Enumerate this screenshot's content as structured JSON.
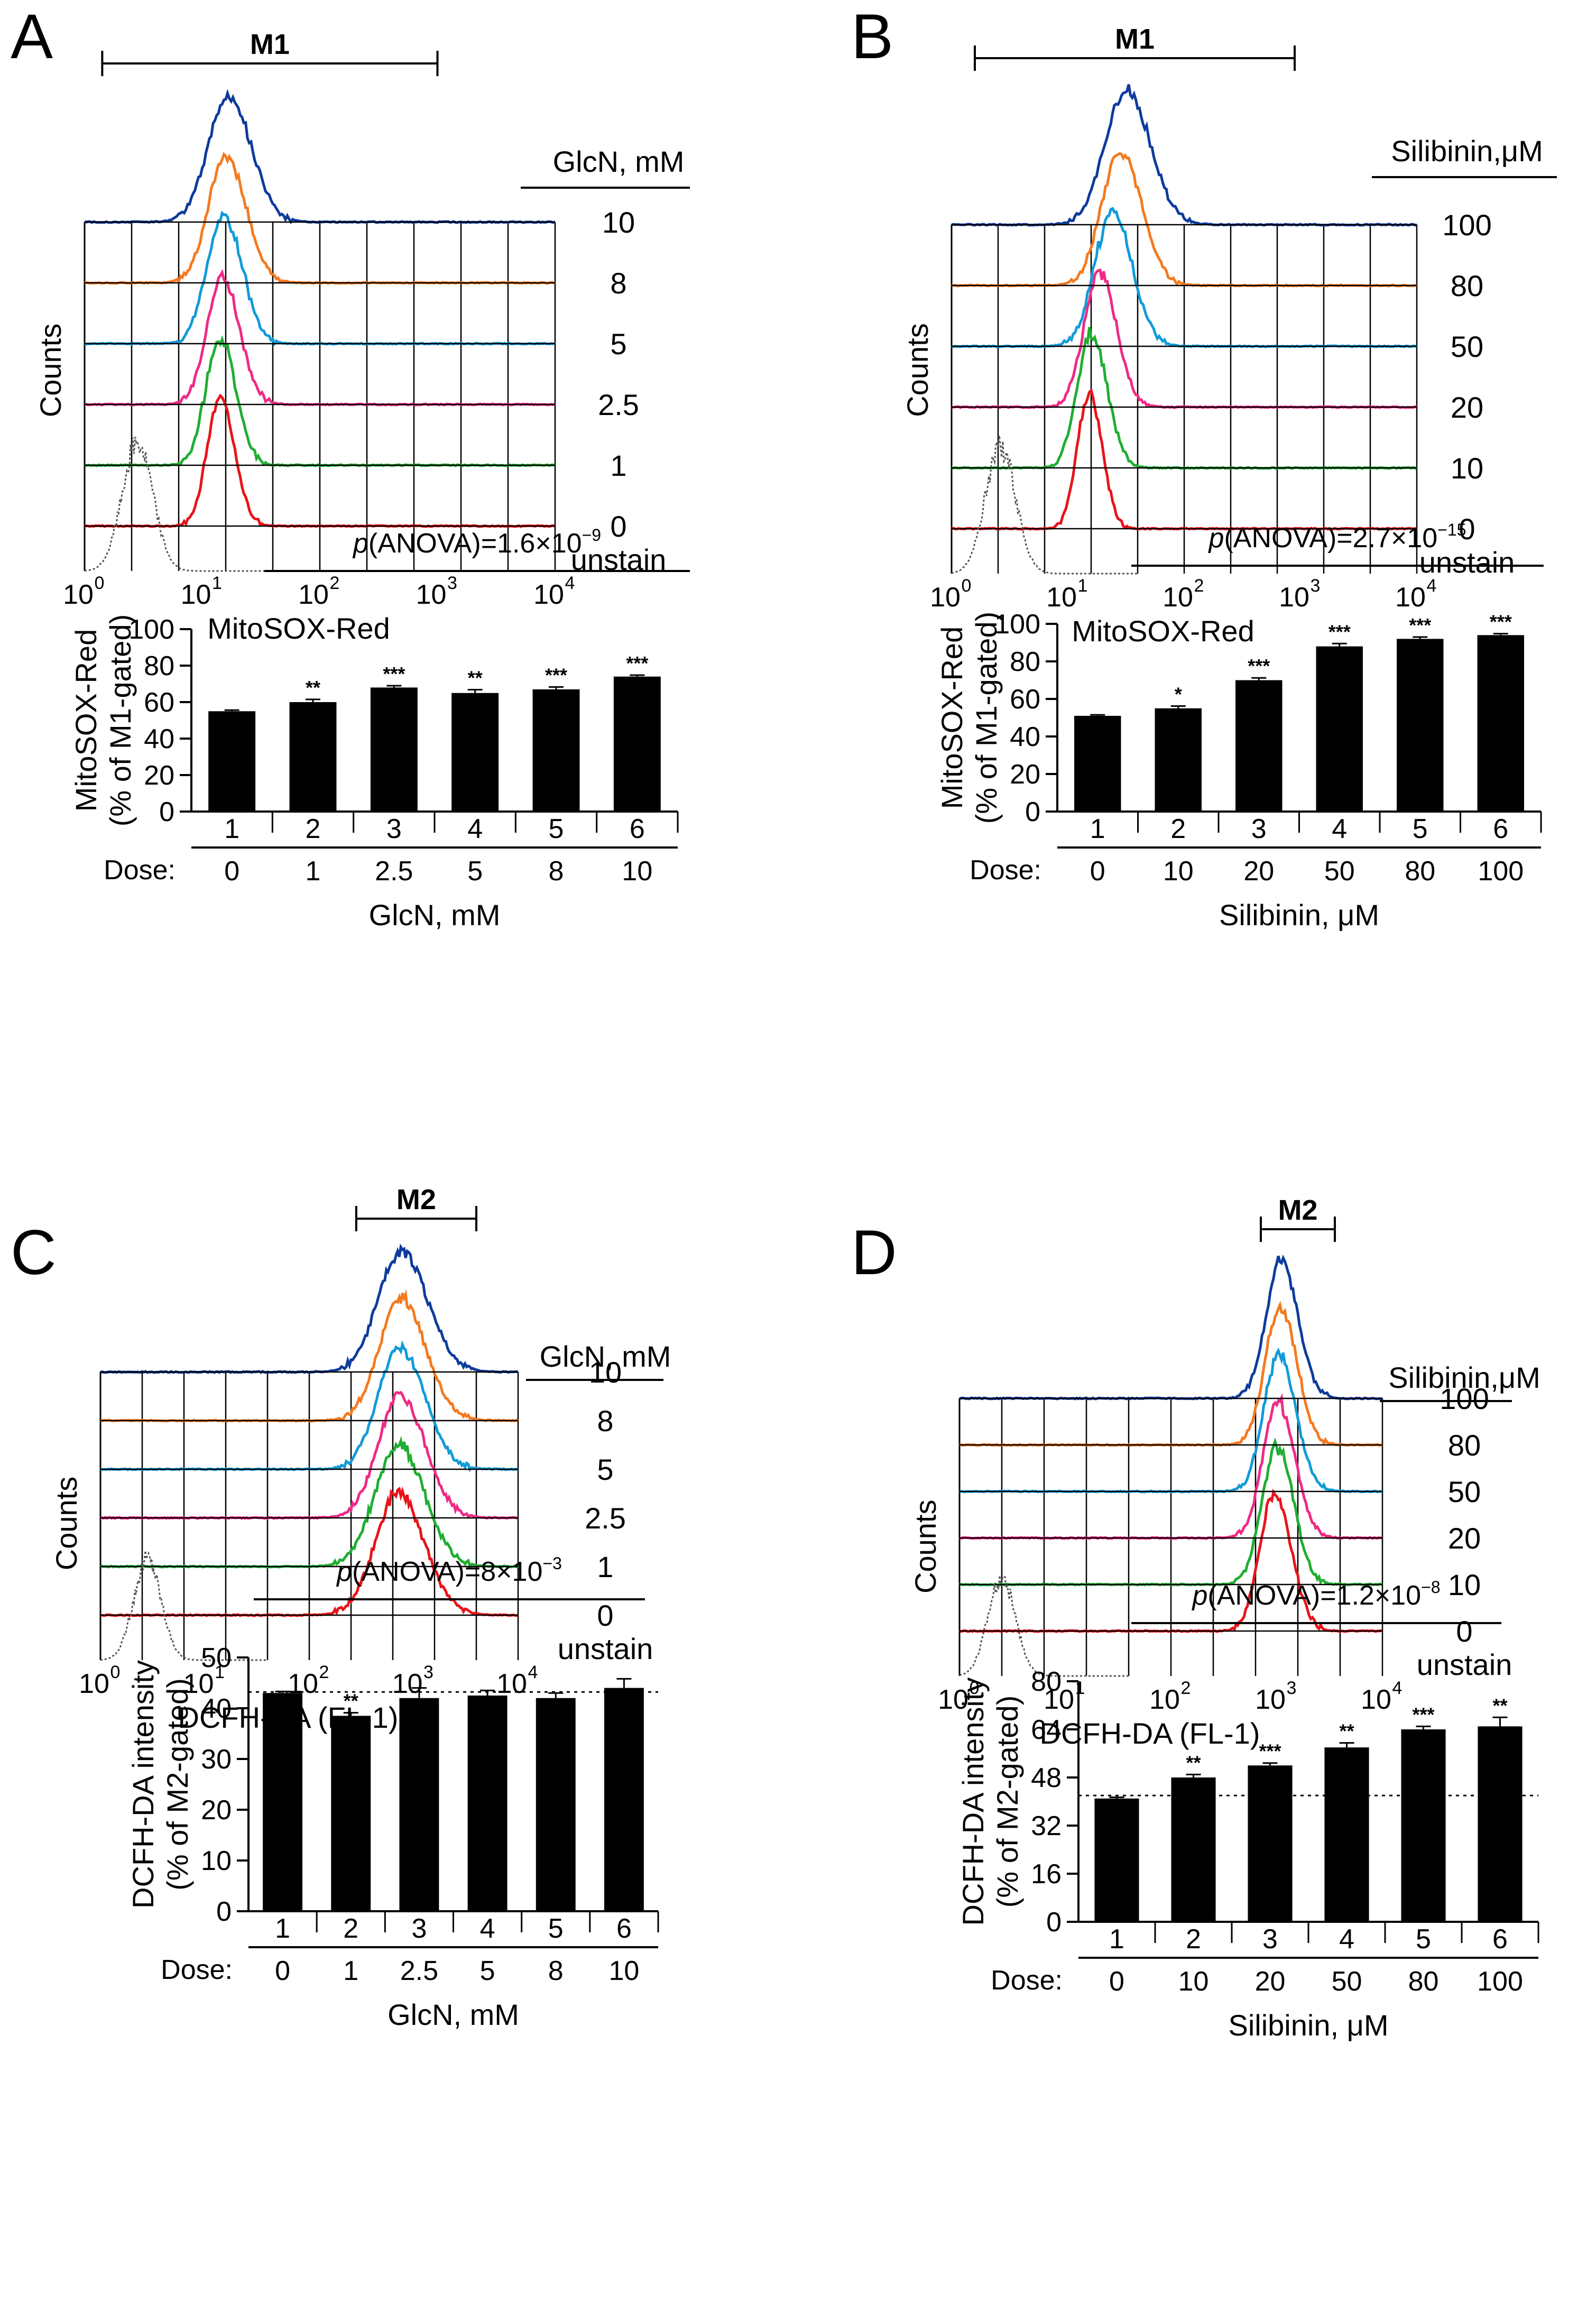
{
  "figure": {
    "panels": [
      {
        "id": "A",
        "label": "A",
        "histogram": {
          "gate_label": "M1",
          "gate_range_log": [
            0.15,
            3.0
          ],
          "xlabel": "MitoSOX-Red",
          "ylabel": "Counts",
          "legend_title": "GlcN, mM",
          "x_ticks": [
            "10",
            "10",
            "10",
            "10",
            "10"
          ],
          "x_tick_exps": [
            "0",
            "1",
            "2",
            "3",
            "4"
          ],
          "unstain_label": "unstain",
          "unstain_peak_log": 0.45,
          "traces": [
            {
              "dose": "0",
              "color": "#e8141a",
              "peak_log": 1.15,
              "width": 0.11
            },
            {
              "dose": "1",
              "color": "#1fae31",
              "peak_log": 1.15,
              "width": 0.12
            },
            {
              "dose": "2.5",
              "color": "#ef2a86",
              "peak_log": 1.17,
              "width": 0.13
            },
            {
              "dose": "5",
              "color": "#129bd8",
              "peak_log": 1.18,
              "width": 0.14
            },
            {
              "dose": "8",
              "color": "#f47a20",
              "peak_log": 1.2,
              "width": 0.15
            },
            {
              "dose": "10",
              "color": "#0e3b9c",
              "peak_log": 1.22,
              "width": 0.17
            }
          ]
        },
        "bar": {
          "anova_prefix": "p",
          "anova_text": "(ANOVA)=1.6×10",
          "anova_exp": "−9",
          "ylabel_line1": "MitoSOX-Red",
          "ylabel_line2": "(% of M1-gated)",
          "ylim": [
            0,
            100
          ],
          "yticks": [
            "0",
            "20",
            "40",
            "60",
            "80",
            "100"
          ],
          "categories": [
            "1",
            "2",
            "3",
            "4",
            "5",
            "6"
          ],
          "dose_label": "Dose:",
          "doses": [
            "0",
            "1",
            "2.5",
            "5",
            "8",
            "10"
          ],
          "xlabel": "GlcN, mM",
          "values": [
            55,
            60,
            68,
            65,
            67,
            74
          ],
          "errors": [
            0.6,
            1.5,
            1.0,
            1.8,
            1.3,
            0.8
          ],
          "stars": [
            "",
            "**",
            "***",
            "**",
            "***",
            "***"
          ],
          "baseline": null
        }
      },
      {
        "id": "B",
        "label": "B",
        "histogram": {
          "gate_label": "M1",
          "gate_range_log": [
            0.2,
            2.95
          ],
          "xlabel": "MitoSOX-Red",
          "ylabel": "Counts",
          "legend_title": "Silibinin,μM",
          "x_ticks": [
            "10",
            "10",
            "10",
            "10",
            "10"
          ],
          "x_tick_exps": [
            "0",
            "1",
            "2",
            "3",
            "4"
          ],
          "unstain_label": "unstain",
          "unstain_peak_log": 0.42,
          "traces": [
            {
              "dose": "0",
              "color": "#e8141a",
              "peak_log": 1.18,
              "width": 0.1
            },
            {
              "dose": "10",
              "color": "#1fae31",
              "peak_log": 1.2,
              "width": 0.12
            },
            {
              "dose": "20",
              "color": "#ef2a86",
              "peak_log": 1.27,
              "width": 0.13
            },
            {
              "dose": "50",
              "color": "#129bd8",
              "peak_log": 1.38,
              "width": 0.15
            },
            {
              "dose": "80",
              "color": "#f47a20",
              "peak_log": 1.45,
              "width": 0.16
            },
            {
              "dose": "100",
              "color": "#0e3b9c",
              "peak_log": 1.5,
              "width": 0.18
            }
          ]
        },
        "bar": {
          "anova_prefix": "p",
          "anova_text": "(ANOVA)=2.7×10",
          "anova_exp": "−15",
          "ylabel_line1": "MitoSOX-Red",
          "ylabel_line2": "(% of M1-gated)",
          "ylim": [
            0,
            100
          ],
          "yticks": [
            "0",
            "20",
            "40",
            "60",
            "80",
            "100"
          ],
          "categories": [
            "1",
            "2",
            "3",
            "4",
            "5",
            "6"
          ],
          "dose_label": "Dose:",
          "doses": [
            "0",
            "10",
            "20",
            "50",
            "80",
            "100"
          ],
          "xlabel": "Silibinin, μM",
          "values": [
            51,
            55,
            70,
            88,
            92,
            94
          ],
          "errors": [
            0.5,
            1.2,
            1.2,
            1.5,
            1.0,
            0.8
          ],
          "stars": [
            "",
            "*",
            "***",
            "***",
            "***",
            "***"
          ],
          "baseline": null
        }
      },
      {
        "id": "C",
        "label": "C",
        "histogram": {
          "gate_label": "M2",
          "gate_range_log": [
            2.45,
            3.6
          ],
          "xlabel": "DCFH-DA (FL-1)",
          "ylabel": "Counts",
          "legend_title": "GlcN, mM",
          "x_ticks": [
            "10",
            "10",
            "10",
            "10",
            "10"
          ],
          "x_tick_exps": [
            "0",
            "1",
            "2",
            "3",
            "4"
          ],
          "unstain_label": "unstain",
          "unstain_peak_log": 0.45,
          "traces": [
            {
              "dose": "0",
              "color": "#e8141a",
              "peak_log": 2.85,
              "width": 0.22
            },
            {
              "dose": "1",
              "color": "#1fae31",
              "peak_log": 2.85,
              "width": 0.22
            },
            {
              "dose": "2.5",
              "color": "#ef2a86",
              "peak_log": 2.87,
              "width": 0.21
            },
            {
              "dose": "5",
              "color": "#129bd8",
              "peak_log": 2.87,
              "width": 0.21
            },
            {
              "dose": "8",
              "color": "#f47a20",
              "peak_log": 2.88,
              "width": 0.21
            },
            {
              "dose": "10",
              "color": "#0e3b9c",
              "peak_log": 2.88,
              "width": 0.22
            }
          ]
        },
        "bar": {
          "anova_prefix": "p",
          "anova_text": "(ANOVA)=8×10",
          "anova_exp": "−3",
          "ylabel_line1": "DCFH-DA intensity",
          "ylabel_line2": "(% of M2-gated)",
          "ylim": [
            0,
            50
          ],
          "yticks": [
            "0",
            "10",
            "20",
            "30",
            "40",
            "50"
          ],
          "categories": [
            "1",
            "2",
            "3",
            "4",
            "5",
            "6"
          ],
          "dose_label": "Dose:",
          "doses": [
            "0",
            "1",
            "2.5",
            "5",
            "8",
            "10"
          ],
          "xlabel": "GlcN, mM",
          "values": [
            43,
            38.5,
            42,
            42.5,
            42,
            44
          ],
          "errors": [
            0.3,
            0.6,
            2.0,
            1.0,
            1.0,
            1.8
          ],
          "stars": [
            "",
            "**",
            "",
            "",
            "",
            ""
          ],
          "baseline": 43.2
        }
      },
      {
        "id": "D",
        "label": "D",
        "histogram": {
          "gate_label": "M2",
          "gate_range_log": [
            2.85,
            3.55
          ],
          "xlabel": "DCFH-DA (FL-1)",
          "ylabel": "Counts",
          "legend_title": "Silibinin,μM",
          "x_ticks": [
            "10",
            "10",
            "10",
            "10",
            "10"
          ],
          "x_tick_exps": [
            "0",
            "1",
            "2",
            "3",
            "4"
          ],
          "unstain_label": "unstain",
          "unstain_peak_log": 0.4,
          "traces": [
            {
              "dose": "0",
              "color": "#e8141a",
              "peak_log": 2.98,
              "width": 0.14
            },
            {
              "dose": "10",
              "color": "#1fae31",
              "peak_log": 3.0,
              "width": 0.14
            },
            {
              "dose": "20",
              "color": "#ef2a86",
              "peak_log": 3.01,
              "width": 0.14
            },
            {
              "dose": "50",
              "color": "#129bd8",
              "peak_log": 3.02,
              "width": 0.14
            },
            {
              "dose": "80",
              "color": "#f47a20",
              "peak_log": 3.03,
              "width": 0.14
            },
            {
              "dose": "100",
              "color": "#0e3b9c",
              "peak_log": 3.04,
              "width": 0.14
            }
          ]
        },
        "bar": {
          "anova_prefix": "p",
          "anova_text": "(ANOVA)=1.2×10",
          "anova_exp": "−8",
          "ylabel_line1": "DCFH-DA intensity",
          "ylabel_line2": "(% of M2-gated)",
          "ylim": [
            0,
            80
          ],
          "yticks": [
            "0",
            "16",
            "32",
            "48",
            "64",
            "80"
          ],
          "categories": [
            "1",
            "2",
            "3",
            "4",
            "5",
            "6"
          ],
          "dose_label": "Dose:",
          "doses": [
            "0",
            "10",
            "20",
            "50",
            "80",
            "100"
          ],
          "xlabel": "Silibinin, μM",
          "values": [
            41,
            48,
            52,
            58,
            64,
            65
          ],
          "errors": [
            0.4,
            1.0,
            0.8,
            1.5,
            1.0,
            3.0
          ],
          "stars": [
            "",
            "**",
            "***",
            "**",
            "***",
            "**"
          ],
          "baseline": 42
        }
      }
    ]
  },
  "chart_data": [
    {
      "type": "bar",
      "panel": "A",
      "title": "p(ANOVA)=1.6×10^-9",
      "categories": [
        "1",
        "2",
        "3",
        "4",
        "5",
        "6"
      ],
      "doses": [
        "0",
        "1",
        "2.5",
        "5",
        "8",
        "10"
      ],
      "values": [
        55,
        60,
        68,
        65,
        67,
        74
      ],
      "xlabel": "GlcN, mM",
      "ylabel": "MitoSOX-Red (% of M1-gated)",
      "ylim": [
        0,
        100
      ]
    },
    {
      "type": "bar",
      "panel": "B",
      "title": "p(ANOVA)=2.7×10^-15",
      "categories": [
        "1",
        "2",
        "3",
        "4",
        "5",
        "6"
      ],
      "doses": [
        "0",
        "10",
        "20",
        "50",
        "80",
        "100"
      ],
      "values": [
        51,
        55,
        70,
        88,
        92,
        94
      ],
      "xlabel": "Silibinin, μM",
      "ylabel": "MitoSOX-Red (% of M1-gated)",
      "ylim": [
        0,
        100
      ]
    },
    {
      "type": "bar",
      "panel": "C",
      "title": "p(ANOVA)=8×10^-3",
      "categories": [
        "1",
        "2",
        "3",
        "4",
        "5",
        "6"
      ],
      "doses": [
        "0",
        "1",
        "2.5",
        "5",
        "8",
        "10"
      ],
      "values": [
        43,
        38.5,
        42,
        42.5,
        42,
        44
      ],
      "xlabel": "GlcN, mM",
      "ylabel": "DCFH-DA intensity (% of M2-gated)",
      "ylim": [
        0,
        50
      ]
    },
    {
      "type": "bar",
      "panel": "D",
      "title": "p(ANOVA)=1.2×10^-8",
      "categories": [
        "1",
        "2",
        "3",
        "4",
        "5",
        "6"
      ],
      "doses": [
        "0",
        "10",
        "20",
        "50",
        "80",
        "100"
      ],
      "values": [
        41,
        48,
        52,
        58,
        64,
        65
      ],
      "xlabel": "Silibinin, μM",
      "ylabel": "DCFH-DA intensity (% of M2-gated)",
      "ylim": [
        0,
        80
      ]
    }
  ]
}
